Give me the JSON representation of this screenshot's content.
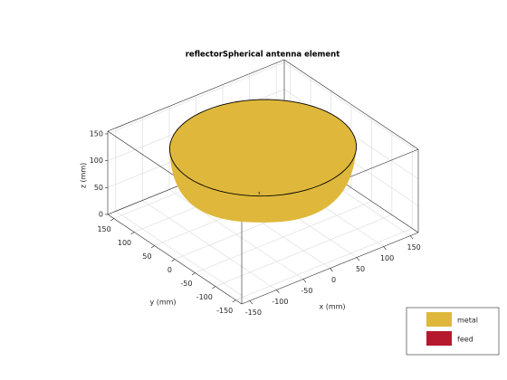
{
  "chart_data": {
    "type": "surface3d",
    "title": "reflectorSpherical antenna element",
    "xlabel": "x (mm)",
    "ylabel": "y (mm)",
    "zlabel": "z (mm)",
    "xlim": [
      -165,
      165
    ],
    "ylim": [
      -165,
      165
    ],
    "zlim": [
      0,
      155
    ],
    "xticks": [
      -150,
      -100,
      -50,
      0,
      50,
      100,
      150
    ],
    "yticks": [
      -150,
      -100,
      -50,
      0,
      50,
      100,
      150
    ],
    "zticks": [
      0,
      50,
      100,
      150
    ],
    "grid": true,
    "legend_position": "lower-right",
    "legend": [
      {
        "name": "metal",
        "color": "#dfb83b"
      },
      {
        "name": "feed",
        "color": "#b6192e"
      }
    ]
  }
}
